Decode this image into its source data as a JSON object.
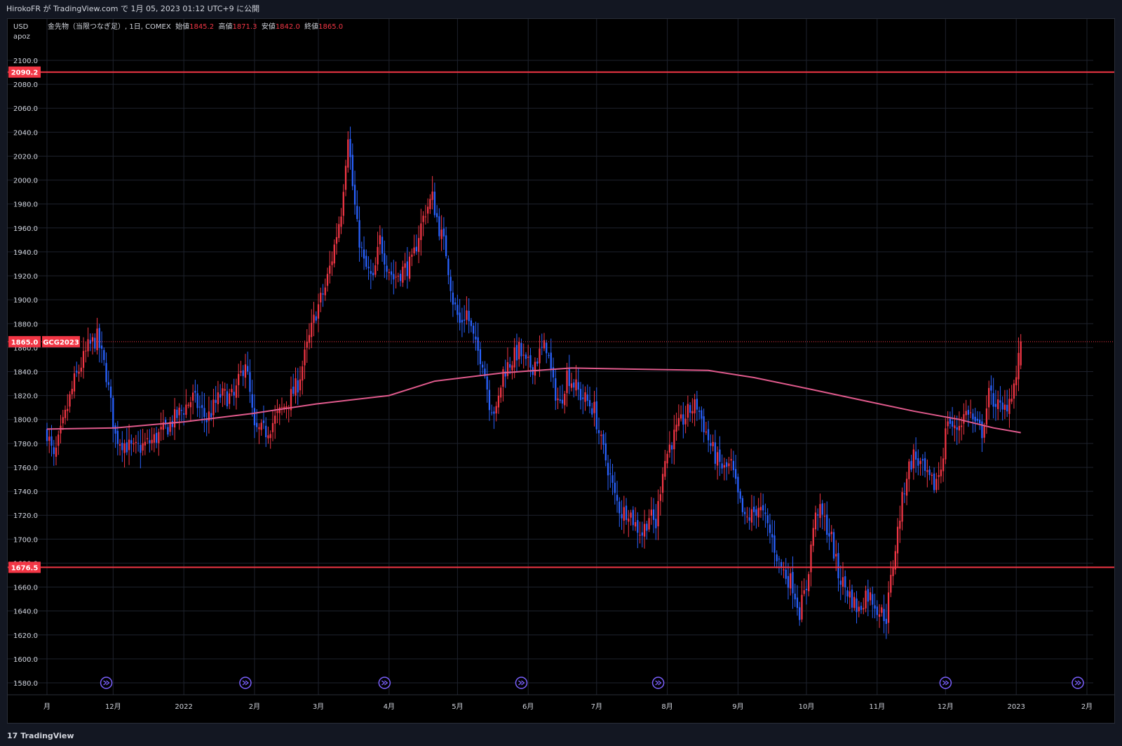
{
  "header": {
    "publisher": "HirokoFR が TradingView.com で 1月 05, 2023 01:12 UTC+9 に公開"
  },
  "footer": {
    "brand": "TradingView",
    "logo_icon": "tradingview-logo-icon"
  },
  "chart_data": {
    "type": "candlestick",
    "currency": "USD",
    "scale_label": "apoz",
    "legend": {
      "symbol": "金先物（当限つなぎ足）, 1日, COMEX",
      "open_label": "始値",
      "open": "1845.2",
      "high_label": "高値",
      "high": "1871.3",
      "low_label": "安値",
      "low": "1842.0",
      "close_label": "終値",
      "close": "1865.0"
    },
    "ylim": [
      1572,
      2112
    ],
    "y_ticks": [
      "1580.0",
      "1600.0",
      "1620.0",
      "1640.0",
      "1660.0",
      "1680.0",
      "1700.0",
      "1720.0",
      "1740.0",
      "1760.0",
      "1780.0",
      "1800.0",
      "1820.0",
      "1840.0",
      "1860.0",
      "1880.0",
      "1900.0",
      "1920.0",
      "1940.0",
      "1960.0",
      "1980.0",
      "2000.0",
      "2020.0",
      "2040.0",
      "2060.0",
      "2080.0",
      "2100.0"
    ],
    "x_ticks": [
      {
        "label": "月",
        "day": 0
      },
      {
        "label": "12月",
        "day": 29
      },
      {
        "label": "2022",
        "day": 60
      },
      {
        "label": "2月",
        "day": 91
      },
      {
        "label": "3月",
        "day": 119
      },
      {
        "label": "4月",
        "day": 150
      },
      {
        "label": "5月",
        "day": 180
      },
      {
        "label": "6月",
        "day": 211
      },
      {
        "label": "7月",
        "day": 241
      },
      {
        "label": "8月",
        "day": 272
      },
      {
        "label": "9月",
        "day": 303
      },
      {
        "label": "10月",
        "day": 333
      },
      {
        "label": "11月",
        "day": 364
      },
      {
        "label": "12月",
        "day": 394
      },
      {
        "label": "2023",
        "day": 425
      },
      {
        "label": "2月",
        "day": 456
      }
    ],
    "horizontal_lines": [
      {
        "label": "2090.2",
        "value": 2090.2,
        "color": "#f23645"
      },
      {
        "label": "1676.5",
        "value": 1676.5,
        "color": "#f23645"
      }
    ],
    "last_price": {
      "label": "1865.0",
      "value": 1865.0,
      "symbol": "GCG2023",
      "color": "#f23645"
    },
    "colors": {
      "up": "#f23645",
      "down": "#2962ff",
      "ma": "#e05a8c",
      "grid": "#1e222d",
      "text": "#d1d4dc",
      "event": "#7b61ff"
    },
    "events_icon": "dividend-arrow-icon",
    "event_days": [
      26,
      87,
      148,
      208,
      268,
      394,
      452
    ],
    "pivots": [
      {
        "day": 0,
        "price": 1790
      },
      {
        "day": 3,
        "price": 1766
      },
      {
        "day": 12,
        "price": 1832
      },
      {
        "day": 18,
        "price": 1860
      },
      {
        "day": 22,
        "price": 1868
      },
      {
        "day": 26,
        "price": 1838
      },
      {
        "day": 30,
        "price": 1786
      },
      {
        "day": 38,
        "price": 1774
      },
      {
        "day": 46,
        "price": 1782
      },
      {
        "day": 52,
        "price": 1792
      },
      {
        "day": 58,
        "price": 1805
      },
      {
        "day": 64,
        "price": 1818
      },
      {
        "day": 70,
        "price": 1800
      },
      {
        "day": 76,
        "price": 1820
      },
      {
        "day": 82,
        "price": 1818
      },
      {
        "day": 87,
        "price": 1850
      },
      {
        "day": 91,
        "price": 1790
      },
      {
        "day": 96,
        "price": 1790
      },
      {
        "day": 100,
        "price": 1800
      },
      {
        "day": 106,
        "price": 1816
      },
      {
        "day": 110,
        "price": 1830
      },
      {
        "day": 114,
        "price": 1860
      },
      {
        "day": 118,
        "price": 1890
      },
      {
        "day": 122,
        "price": 1910
      },
      {
        "day": 125,
        "price": 1935
      },
      {
        "day": 129,
        "price": 1975
      },
      {
        "day": 132,
        "price": 2040
      },
      {
        "day": 134,
        "price": 1995
      },
      {
        "day": 136,
        "price": 1960
      },
      {
        "day": 139,
        "price": 1930
      },
      {
        "day": 143,
        "price": 1915
      },
      {
        "day": 146,
        "price": 1950
      },
      {
        "day": 149,
        "price": 1930
      },
      {
        "day": 152,
        "price": 1918
      },
      {
        "day": 156,
        "price": 1925
      },
      {
        "day": 160,
        "price": 1930
      },
      {
        "day": 163,
        "price": 1955
      },
      {
        "day": 166,
        "price": 1975
      },
      {
        "day": 169,
        "price": 1985
      },
      {
        "day": 172,
        "price": 1960
      },
      {
        "day": 175,
        "price": 1940
      },
      {
        "day": 178,
        "price": 1900
      },
      {
        "day": 181,
        "price": 1880
      },
      {
        "day": 184,
        "price": 1890
      },
      {
        "day": 188,
        "price": 1860
      },
      {
        "day": 191,
        "price": 1850
      },
      {
        "day": 194,
        "price": 1815
      },
      {
        "day": 197,
        "price": 1805
      },
      {
        "day": 200,
        "price": 1840
      },
      {
        "day": 204,
        "price": 1850
      },
      {
        "day": 207,
        "price": 1858
      },
      {
        "day": 210,
        "price": 1845
      },
      {
        "day": 213,
        "price": 1845
      },
      {
        "day": 216,
        "price": 1855
      },
      {
        "day": 219,
        "price": 1862
      },
      {
        "day": 222,
        "price": 1828
      },
      {
        "day": 225,
        "price": 1812
      },
      {
        "day": 228,
        "price": 1838
      },
      {
        "day": 231,
        "price": 1830
      },
      {
        "day": 234,
        "price": 1820
      },
      {
        "day": 237,
        "price": 1815
      },
      {
        "day": 240,
        "price": 1808
      },
      {
        "day": 243,
        "price": 1780
      },
      {
        "day": 246,
        "price": 1760
      },
      {
        "day": 249,
        "price": 1735
      },
      {
        "day": 252,
        "price": 1722
      },
      {
        "day": 255,
        "price": 1725
      },
      {
        "day": 258,
        "price": 1712
      },
      {
        "day": 261,
        "price": 1705
      },
      {
        "day": 264,
        "price": 1720
      },
      {
        "day": 267,
        "price": 1712
      },
      {
        "day": 270,
        "price": 1760
      },
      {
        "day": 273,
        "price": 1778
      },
      {
        "day": 276,
        "price": 1790
      },
      {
        "day": 279,
        "price": 1800
      },
      {
        "day": 282,
        "price": 1808
      },
      {
        "day": 285,
        "price": 1812
      },
      {
        "day": 288,
        "price": 1795
      },
      {
        "day": 291,
        "price": 1778
      },
      {
        "day": 294,
        "price": 1765
      },
      {
        "day": 297,
        "price": 1758
      },
      {
        "day": 300,
        "price": 1762
      },
      {
        "day": 303,
        "price": 1735
      },
      {
        "day": 306,
        "price": 1715
      },
      {
        "day": 309,
        "price": 1720
      },
      {
        "day": 312,
        "price": 1728
      },
      {
        "day": 315,
        "price": 1715
      },
      {
        "day": 318,
        "price": 1700
      },
      {
        "day": 321,
        "price": 1680
      },
      {
        "day": 324,
        "price": 1670
      },
      {
        "day": 327,
        "price": 1662
      },
      {
        "day": 330,
        "price": 1640
      },
      {
        "day": 333,
        "price": 1660
      },
      {
        "day": 336,
        "price": 1710
      },
      {
        "day": 338,
        "price": 1725
      },
      {
        "day": 341,
        "price": 1715
      },
      {
        "day": 344,
        "price": 1700
      },
      {
        "day": 347,
        "price": 1670
      },
      {
        "day": 350,
        "price": 1660
      },
      {
        "day": 353,
        "price": 1650
      },
      {
        "day": 356,
        "price": 1640
      },
      {
        "day": 359,
        "price": 1655
      },
      {
        "day": 362,
        "price": 1650
      },
      {
        "day": 365,
        "price": 1640
      },
      {
        "day": 368,
        "price": 1635
      },
      {
        "day": 371,
        "price": 1680
      },
      {
        "day": 374,
        "price": 1720
      },
      {
        "day": 377,
        "price": 1755
      },
      {
        "day": 380,
        "price": 1770
      },
      {
        "day": 383,
        "price": 1762
      },
      {
        "day": 386,
        "price": 1750
      },
      {
        "day": 389,
        "price": 1745
      },
      {
        "day": 392,
        "price": 1760
      },
      {
        "day": 395,
        "price": 1802
      },
      {
        "day": 398,
        "price": 1790
      },
      {
        "day": 401,
        "price": 1800
      },
      {
        "day": 404,
        "price": 1808
      },
      {
        "day": 407,
        "price": 1795
      },
      {
        "day": 410,
        "price": 1790
      },
      {
        "day": 413,
        "price": 1820
      },
      {
        "day": 416,
        "price": 1815
      },
      {
        "day": 419,
        "price": 1805
      },
      {
        "day": 422,
        "price": 1818
      },
      {
        "day": 425,
        "price": 1835
      },
      {
        "day": 427,
        "price": 1865
      }
    ],
    "ma_curve": [
      {
        "day": 0,
        "price": 1792
      },
      {
        "day": 30,
        "price": 1793
      },
      {
        "day": 60,
        "price": 1798
      },
      {
        "day": 90,
        "price": 1805
      },
      {
        "day": 118,
        "price": 1813
      },
      {
        "day": 150,
        "price": 1820
      },
      {
        "day": 170,
        "price": 1832
      },
      {
        "day": 200,
        "price": 1839
      },
      {
        "day": 230,
        "price": 1843
      },
      {
        "day": 260,
        "price": 1842
      },
      {
        "day": 290,
        "price": 1841
      },
      {
        "day": 310,
        "price": 1835
      },
      {
        "day": 333,
        "price": 1826
      },
      {
        "day": 360,
        "price": 1815
      },
      {
        "day": 380,
        "price": 1807
      },
      {
        "day": 400,
        "price": 1800
      },
      {
        "day": 415,
        "price": 1793
      },
      {
        "day": 427,
        "price": 1789
      }
    ],
    "grid": true,
    "legend_position": "top-left"
  }
}
